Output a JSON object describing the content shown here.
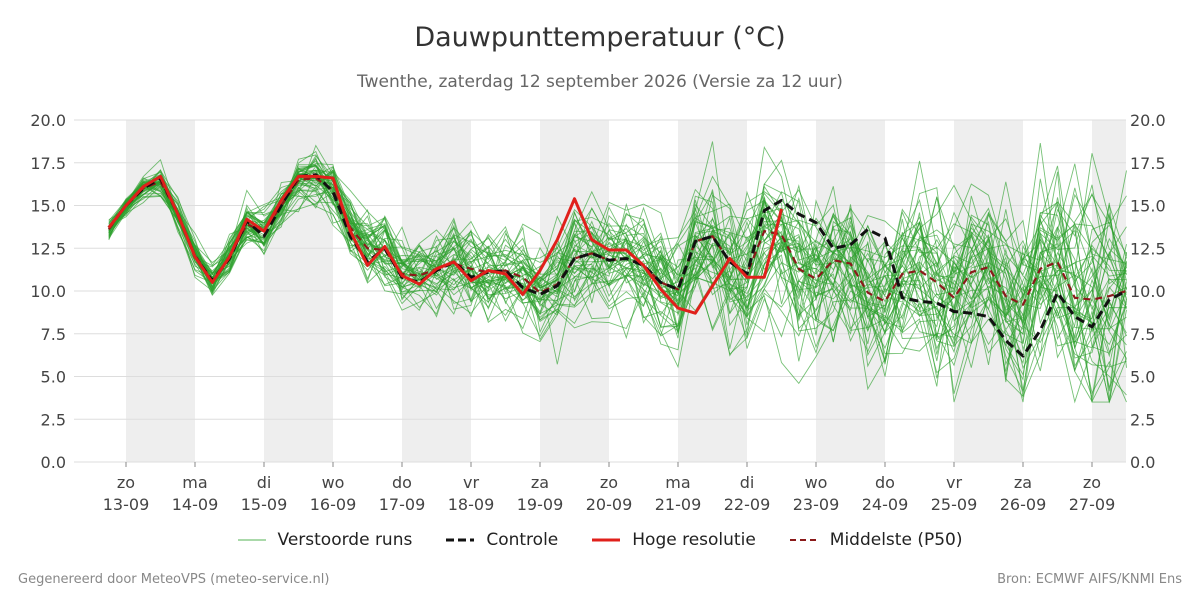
{
  "chart_data": {
    "type": "line",
    "title": "Dauwpunttemperatuur (°C)",
    "subtitle": "Twenthe, zaterdag 12 september 2026 (Versie za 12 uur)",
    "ylim": [
      0,
      20
    ],
    "y_ticks": [
      "0.0",
      "2.5",
      "5.0",
      "7.5",
      "10.0",
      "12.5",
      "15.0",
      "17.5",
      "20.0"
    ],
    "x_range": [
      0,
      14.5
    ],
    "day_labels": [
      {
        "day": "zo",
        "date": "13-09"
      },
      {
        "day": "ma",
        "date": "14-09"
      },
      {
        "day": "di",
        "date": "15-09"
      },
      {
        "day": "wo",
        "date": "16-09"
      },
      {
        "day": "do",
        "date": "17-09"
      },
      {
        "day": "vr",
        "date": "18-09"
      },
      {
        "day": "za",
        "date": "19-09"
      },
      {
        "day": "zo",
        "date": "20-09"
      },
      {
        "day": "ma",
        "date": "21-09"
      },
      {
        "day": "di",
        "date": "22-09"
      },
      {
        "day": "wo",
        "date": "23-09"
      },
      {
        "day": "do",
        "date": "24-09"
      },
      {
        "day": "vr",
        "date": "25-09"
      },
      {
        "day": "za",
        "date": "26-09"
      },
      {
        "day": "zo",
        "date": "27-09"
      }
    ],
    "shaded_days": [
      0,
      2,
      4,
      6,
      8,
      10,
      12,
      14
    ],
    "ensemble_count": 50,
    "ensemble_color": "#2ca02c",
    "series": [
      {
        "name": "Controle",
        "color": "#111111",
        "style": "dashed",
        "x": [
          -0.25,
          0,
          0.25,
          0.5,
          0.75,
          1.0,
          1.25,
          1.5,
          1.75,
          2.0,
          2.25,
          2.5,
          2.75,
          3.0,
          3.25,
          3.5,
          3.75,
          4.0,
          4.25,
          4.5,
          4.75,
          5.0,
          5.25,
          5.5,
          5.75,
          6.0,
          6.25,
          6.5,
          6.75,
          7.0,
          7.25,
          7.5,
          7.75,
          8.0,
          8.25,
          8.5,
          8.75,
          9.0,
          9.25,
          9.5,
          9.75,
          10.0,
          10.25,
          10.5,
          10.75,
          11.0,
          11.25,
          11.5,
          11.75,
          12.0,
          12.25,
          12.5,
          12.75,
          13.0,
          13.25,
          13.5,
          13.75,
          14.0,
          14.25,
          14.5
        ],
        "y": [
          13.7,
          15.0,
          16.0,
          16.6,
          14.5,
          12.0,
          10.6,
          11.9,
          14.1,
          13.2,
          15.0,
          16.7,
          16.8,
          15.8,
          13.2,
          11.7,
          12.5,
          10.8,
          10.5,
          11.2,
          11.7,
          10.8,
          11.1,
          11.2,
          10.2,
          9.8,
          10.3,
          11.9,
          12.2,
          11.8,
          11.9,
          11.5,
          10.5,
          10.1,
          12.9,
          13.2,
          11.7,
          11.0,
          14.7,
          15.3,
          14.5,
          14.0,
          12.5,
          12.7,
          13.6,
          13.1,
          9.6,
          9.4,
          9.3,
          8.8,
          8.7,
          8.5,
          7.1,
          6.2,
          7.7,
          9.9,
          8.5,
          7.9,
          9.5,
          10.0
        ]
      },
      {
        "name": "Hoge resolutie",
        "color": "#e0201b",
        "style": "solid",
        "x": [
          -0.25,
          0,
          0.25,
          0.5,
          0.75,
          1.0,
          1.25,
          1.5,
          1.75,
          2.0,
          2.25,
          2.5,
          2.75,
          3.0,
          3.25,
          3.5,
          3.75,
          4.0,
          4.25,
          4.5,
          4.75,
          5.0,
          5.25,
          5.5,
          5.75,
          6.0,
          6.25,
          6.5,
          6.75,
          7.0,
          7.25,
          7.5,
          7.75,
          8.0,
          8.25,
          8.5,
          8.75,
          9.0,
          9.25,
          9.5
        ],
        "y": [
          13.7,
          15.0,
          16.1,
          16.7,
          14.5,
          12.0,
          10.5,
          12.0,
          14.2,
          13.5,
          15.3,
          16.7,
          16.7,
          16.6,
          13.5,
          11.5,
          12.6,
          10.9,
          10.4,
          11.3,
          11.7,
          10.6,
          11.2,
          11.0,
          9.8,
          11.2,
          13.0,
          15.4,
          13.0,
          12.4,
          12.4,
          11.5,
          10.1,
          9.0,
          8.7,
          10.3,
          11.9,
          10.8,
          10.8,
          14.8
        ]
      },
      {
        "name": "Middelste (P50)",
        "color": "#8b1a1a",
        "style": "dashed",
        "x": [
          -0.25,
          0,
          0.25,
          0.5,
          0.75,
          1.0,
          1.25,
          1.5,
          1.75,
          2.0,
          2.25,
          2.5,
          2.75,
          3.0,
          3.25,
          3.5,
          3.75,
          4.0,
          4.25,
          4.5,
          4.75,
          5.0,
          5.25,
          5.5,
          5.75,
          6.0,
          6.25,
          6.5,
          6.75,
          7.0,
          7.25,
          7.5,
          7.75,
          8.0,
          8.25,
          8.5,
          8.75,
          9.0,
          9.25,
          9.5,
          9.75,
          10.0,
          10.25,
          10.5,
          10.75,
          11.0,
          11.25,
          11.5,
          11.75,
          12.0,
          12.25,
          12.5,
          12.75,
          13.0,
          13.25,
          13.5,
          13.75,
          14.0,
          14.25,
          14.5
        ],
        "y": [
          13.6,
          15.0,
          16.0,
          16.4,
          14.5,
          12.1,
          10.6,
          12.0,
          13.9,
          13.5,
          15.0,
          16.5,
          16.6,
          15.9,
          13.7,
          12.5,
          12.4,
          11.0,
          10.9,
          11.3,
          11.6,
          11.3,
          11.1,
          11.2,
          10.8,
          9.9,
          10.4,
          11.9,
          12.2,
          11.8,
          11.9,
          11.5,
          10.5,
          10.1,
          12.9,
          13.2,
          11.7,
          11.0,
          13.5,
          13.3,
          11.3,
          10.7,
          11.8,
          11.6,
          9.9,
          9.4,
          11.0,
          11.2,
          10.5,
          9.6,
          11.1,
          11.4,
          9.7,
          9.2,
          11.3,
          11.7,
          9.6,
          9.5,
          9.7,
          10.0
        ]
      }
    ],
    "legend": [
      {
        "label": "Verstoorde runs",
        "color": "#2ca02c",
        "style": "thin"
      },
      {
        "label": "Controle",
        "color": "#111111",
        "style": "dashed"
      },
      {
        "label": "Hoge resolutie",
        "color": "#e0201b",
        "style": "solid"
      },
      {
        "label": "Middelste (P50)",
        "color": "#8b1a1a",
        "style": "dashed"
      }
    ],
    "grid": true,
    "legend_position": "bottom"
  },
  "footer": {
    "left": "Gegenereerd door MeteoVPS (meteo-service.nl)",
    "right": "Bron: ECMWF AIFS/KNMI Ens"
  }
}
